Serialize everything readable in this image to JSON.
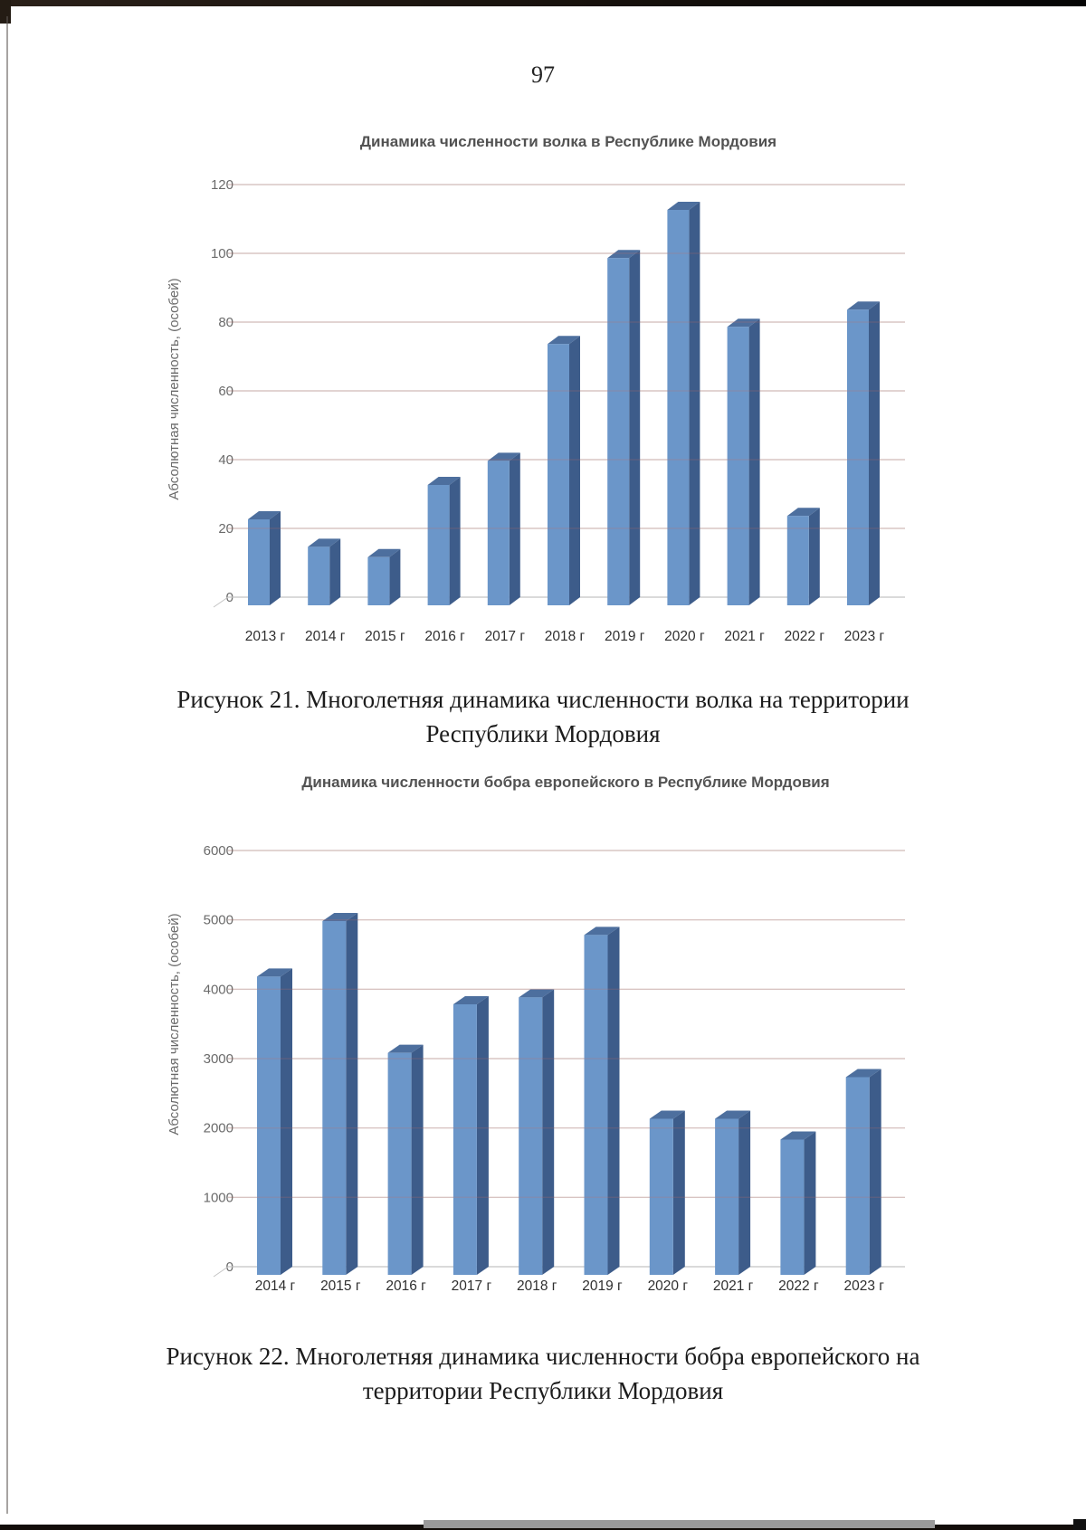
{
  "page": {
    "number": "97"
  },
  "style": {
    "bar_front": "#6b96c9",
    "bar_top": "#4d6f9e",
    "bar_side": "#3d5c8a",
    "gridline": "#d9d9d9",
    "baseline": "#c4c4c4",
    "axis_text": "#6a6a6a",
    "title_text": "#525252",
    "xlabel_text": "#2f2f2f",
    "artifact_line": "rgba(198,110,100,0.22)"
  },
  "chart_data": [
    {
      "type": "bar",
      "title": "Динамика численности волка в Республике Мордовия",
      "ylabel": "Абсолютная численность, (особей)",
      "xlabel": "",
      "categories": [
        "2013 г",
        "2014 г",
        "2015 г",
        "2016 г",
        "2017 г",
        "2018 г",
        "2019 г",
        "2020 г",
        "2021 г",
        "2022 г",
        "2023 г"
      ],
      "values": [
        25,
        17,
        14,
        35,
        42,
        76,
        101,
        115,
        81,
        26,
        86
      ],
      "ylim": [
        0,
        120
      ],
      "ytick_step": 20,
      "grid": true,
      "style_3d": true
    },
    {
      "type": "bar",
      "title": "Динамика численности бобра европейского в Республике Мордовия",
      "ylabel": "Абсолютная численность, (особей)",
      "xlabel": "",
      "categories": [
        "2014 г",
        "2015 г",
        "2016 г",
        "2017 г",
        "2018 г",
        "2019 г",
        "2020 г",
        "2021 г",
        "2022 г",
        "2023 г"
      ],
      "values": [
        4300,
        5100,
        3200,
        3900,
        4000,
        4900,
        2250,
        2250,
        1950,
        2850
      ],
      "ylim": [
        0,
        6000
      ],
      "ytick_step": 1000,
      "grid": true,
      "style_3d": true
    }
  ],
  "captions": [
    {
      "line1": "Рисунок 21. Многолетняя динамика численности волка на территории",
      "line2": "Республики Мордовия"
    },
    {
      "line1": "Рисунок 22. Многолетняя динамика численности бобра европейского на",
      "line2": "территории Республики Мордовия"
    }
  ]
}
